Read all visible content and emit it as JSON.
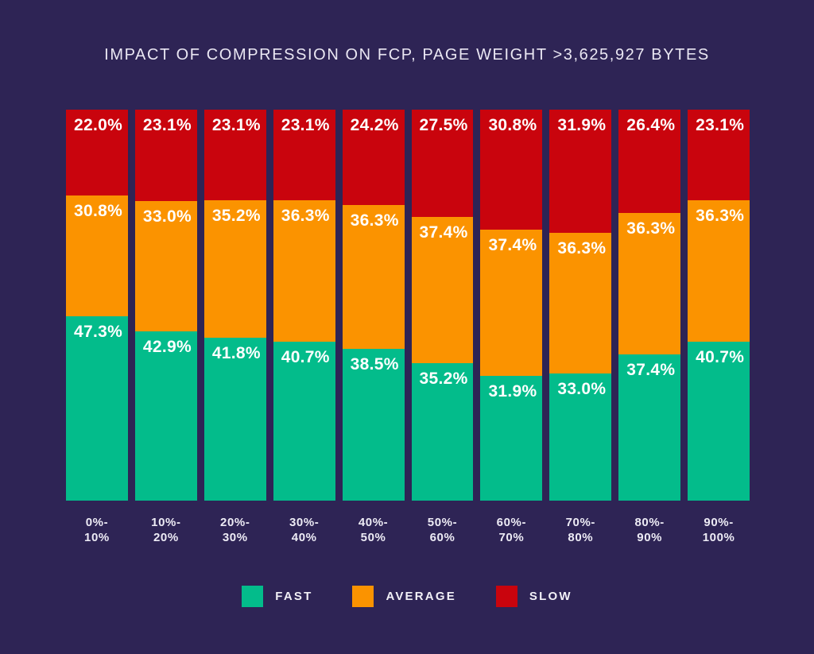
{
  "chart_data": {
    "type": "bar",
    "stacked": true,
    "title": "IMPACT OF COMPRESSION ON FCP, PAGE WEIGHT >3,625,927 BYTES",
    "categories": [
      "0%-10%",
      "10%-20%",
      "20%-30%",
      "30%-40%",
      "40%-50%",
      "50%-60%",
      "60%-70%",
      "70%-80%",
      "80%-90%",
      "90%-100%"
    ],
    "series": [
      {
        "name": "FAST",
        "color": "#03BC8B",
        "values": [
          47.3,
          42.9,
          41.8,
          40.7,
          38.5,
          35.2,
          31.9,
          33.0,
          37.4,
          40.7
        ]
      },
      {
        "name": "AVERAGE",
        "color": "#FB9300",
        "values": [
          30.8,
          33.0,
          35.2,
          36.3,
          36.3,
          37.4,
          37.4,
          36.3,
          36.3,
          36.3
        ]
      },
      {
        "name": "SLOW",
        "color": "#C9040D",
        "values": [
          22.0,
          23.1,
          23.1,
          23.1,
          24.2,
          27.5,
          30.8,
          31.9,
          26.4,
          23.1
        ]
      }
    ],
    "value_suffix": "%",
    "value_decimals": 1,
    "xlabel": "",
    "ylabel": "",
    "ylim": [
      0,
      100
    ],
    "grid": false,
    "legend_position": "bottom",
    "background_color": "#2E2455",
    "title_color": "#EAE7F3",
    "value_label_color": "#FFFFFF",
    "axis_label_color": "#EDEBF5"
  }
}
